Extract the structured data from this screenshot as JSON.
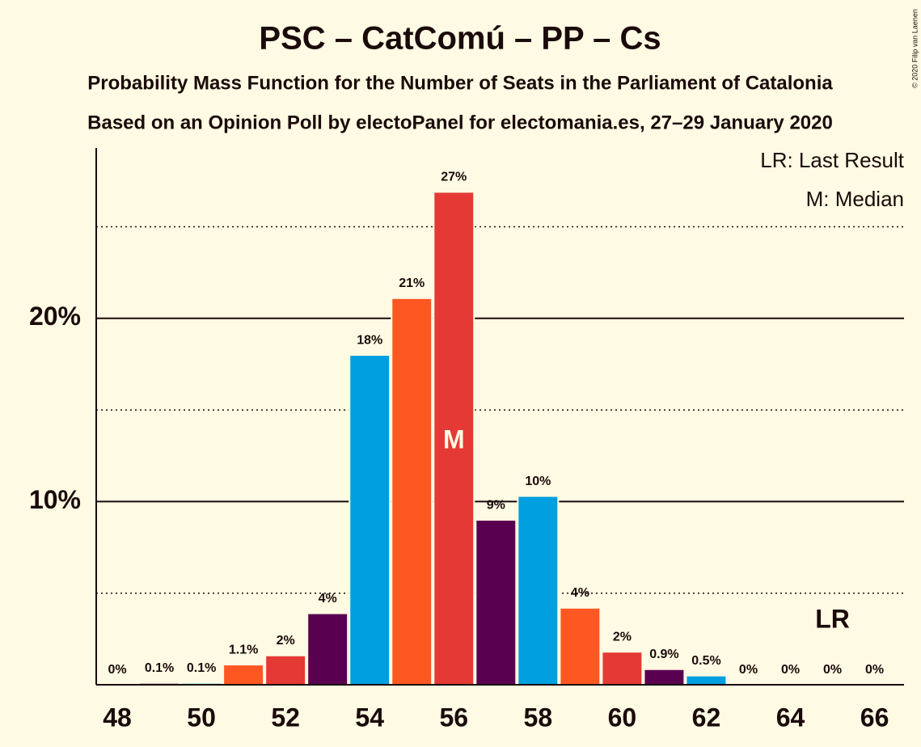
{
  "chart_data": {
    "type": "bar",
    "title": "PSC – CatComú – PP – Cs",
    "subtitle": [
      "Probability Mass Function for the Number of Seats in the Parliament of Catalonia",
      "Based on an Opinion Poll by electoPanel for electomania.es, 27–29 January 2020"
    ],
    "copyright": "© 2020 Filip van Laenen",
    "x": [
      48,
      49,
      50,
      51,
      52,
      53,
      54,
      55,
      56,
      57,
      58,
      59,
      60,
      61,
      62,
      63,
      64,
      65,
      66
    ],
    "values": [
      0,
      0.1,
      0.1,
      1.1,
      1.6,
      3.9,
      18.0,
      21.1,
      26.9,
      9.0,
      10.3,
      4.2,
      1.8,
      0.85,
      0.5,
      0,
      0,
      0,
      0
    ],
    "value_labels": [
      "0%",
      "0.1%",
      "0.1%",
      "1.1%",
      "2%",
      "4%",
      "18%",
      "21%",
      "27%",
      "9%",
      "10%",
      "4%",
      "2%",
      "0.9%",
      "0.5%",
      "0%",
      "0%",
      "0%",
      "0%"
    ],
    "colors": [
      "#e53935",
      "#5a0050",
      "#009fdf",
      "#ff5722",
      "#e53935",
      "#5a0050",
      "#009fdf",
      "#ff5722",
      "#e53935",
      "#5a0050",
      "#009fdf",
      "#ff5722",
      "#e53935",
      "#5a0050",
      "#009fdf",
      "#ff5722",
      "#e53935",
      "#5a0050",
      "#009fdf"
    ],
    "xlim": [
      47.5,
      66.7
    ],
    "xticks": [
      48,
      50,
      52,
      54,
      56,
      58,
      60,
      62,
      64,
      66
    ],
    "ylim": [
      0,
      29.3
    ],
    "yticks": [
      {
        "value": 10,
        "label": "10%"
      },
      {
        "value": 20,
        "label": "20%"
      }
    ],
    "minor_gridlines": [
      5,
      15,
      25
    ],
    "legend_notes": [
      "LR: Last Result",
      "M: Median"
    ],
    "annotations": [
      {
        "text": "M",
        "x": 56
      },
      {
        "text": "LR",
        "x": 65
      }
    ]
  }
}
